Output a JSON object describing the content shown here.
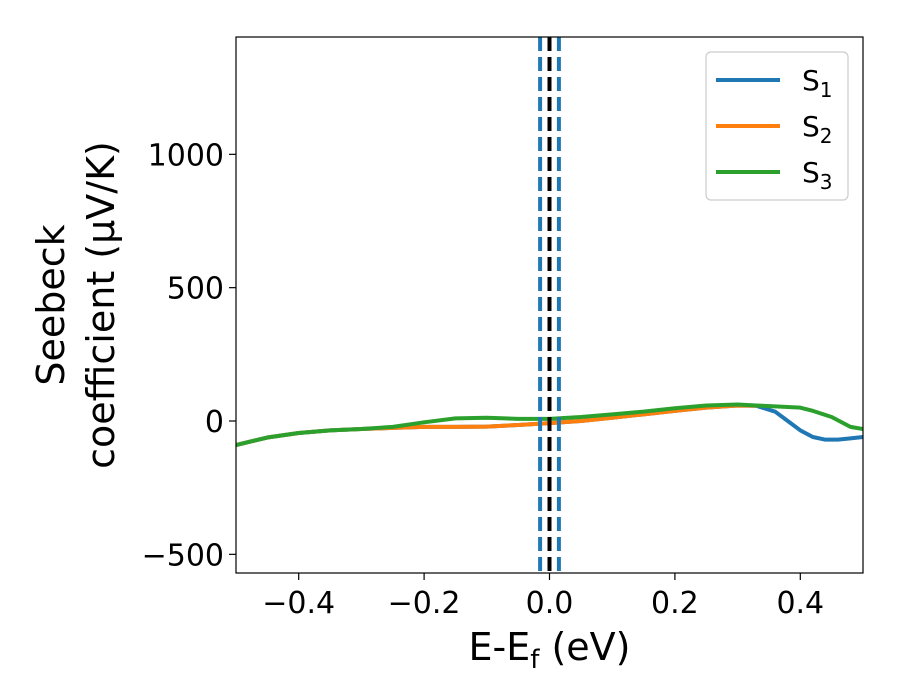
{
  "chart_data": {
    "type": "line",
    "title": "",
    "xlabel": "E-E",
    "xlabel_sub": "f",
    "xlabel_unit": "(eV)",
    "ylabel_line1": "Seebeck",
    "ylabel_line2": "coefficient  (μV/K)",
    "xlim": [
      -0.5,
      0.5
    ],
    "ylim": [
      -570,
      1440
    ],
    "xticks": [
      -0.4,
      -0.2,
      0.0,
      0.2,
      0.4
    ],
    "xtick_labels": [
      "−0.4",
      "−0.2",
      "0.0",
      "0.2",
      "0.4"
    ],
    "yticks": [
      -500,
      0,
      500,
      1000
    ],
    "ytick_labels": [
      "−500",
      "0",
      "500",
      "1000"
    ],
    "grid": false,
    "legend_position": "top-right",
    "vertical_lines": [
      {
        "x": -0.015,
        "color": "#1f77b4",
        "style": "dashed"
      },
      {
        "x": 0.0,
        "color": "#000000",
        "style": "dashed"
      },
      {
        "x": 0.015,
        "color": "#1f77b4",
        "style": "dashed"
      }
    ],
    "series": [
      {
        "name": "S",
        "name_sub": "1",
        "color": "#1f77b4",
        "x": [
          -0.5,
          -0.45,
          -0.4,
          -0.35,
          -0.3,
          -0.25,
          -0.2,
          -0.15,
          -0.1,
          -0.05,
          0.0,
          0.05,
          0.1,
          0.15,
          0.2,
          0.25,
          0.3,
          0.33,
          0.36,
          0.38,
          0.4,
          0.42,
          0.44,
          0.46,
          0.48,
          0.5
        ],
        "y": [
          -90,
          -62,
          -45,
          -35,
          -30,
          -26,
          -22,
          -22,
          -21,
          -15,
          -8,
          0,
          12,
          25,
          38,
          50,
          58,
          57,
          35,
          0,
          -35,
          -60,
          -70,
          -70,
          -65,
          -60
        ]
      },
      {
        "name": "S",
        "name_sub": "2",
        "color": "#ff7f0e",
        "x": [
          -0.5,
          -0.45,
          -0.4,
          -0.35,
          -0.3,
          -0.25,
          -0.2,
          -0.15,
          -0.1,
          -0.05,
          0.0,
          0.05,
          0.1,
          0.15,
          0.2,
          0.25,
          0.3,
          0.33
        ],
        "y": [
          -90,
          -62,
          -45,
          -35,
          -30,
          -26,
          -22,
          -22,
          -21,
          -15,
          -8,
          0,
          12,
          25,
          38,
          50,
          58,
          57
        ]
      },
      {
        "name": "S",
        "name_sub": "3",
        "color": "#2ca02c",
        "x": [
          -0.5,
          -0.45,
          -0.4,
          -0.35,
          -0.3,
          -0.25,
          -0.2,
          -0.15,
          -0.1,
          -0.05,
          0.0,
          0.05,
          0.1,
          0.15,
          0.2,
          0.25,
          0.3,
          0.33,
          0.36,
          0.4,
          0.42,
          0.45,
          0.48,
          0.5
        ],
        "y": [
          -90,
          -62,
          -45,
          -35,
          -30,
          -22,
          -5,
          10,
          12,
          8,
          8,
          15,
          25,
          35,
          48,
          58,
          62,
          58,
          55,
          50,
          38,
          15,
          -22,
          -30
        ]
      }
    ]
  }
}
